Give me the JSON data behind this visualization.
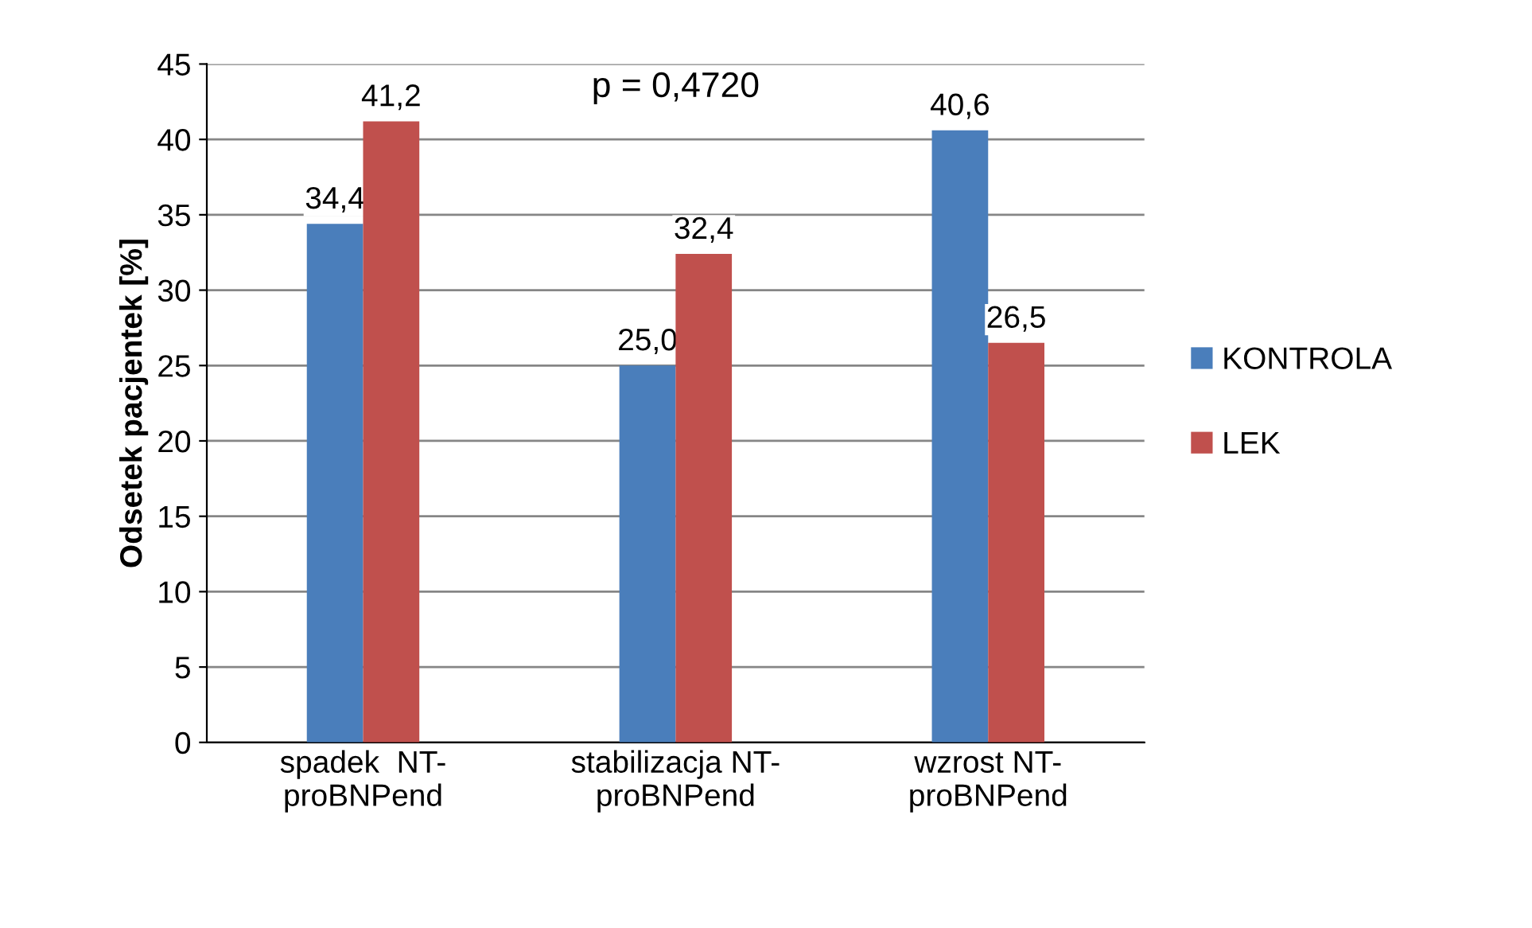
{
  "chart_data": {
    "type": "bar",
    "ylabel": "Odsetek pacjentek [%]",
    "categories": [
      "spadek  NT-\nproBNPend",
      "stabilizacja NT-\nproBNPend",
      "wzrost NT-\nproBNPend"
    ],
    "series": [
      {
        "name": "KONTROLA",
        "color": "#4a7ebb",
        "values": [
          34.4,
          25.0,
          40.6
        ],
        "value_labels": [
          "34,4",
          "25,0",
          "40,6"
        ]
      },
      {
        "name": "LEK",
        "color": "#c0504d",
        "values": [
          41.2,
          32.4,
          26.5
        ],
        "value_labels": [
          "41,2",
          "32,4",
          "26,5"
        ]
      }
    ],
    "ylim": [
      0,
      45
    ],
    "yticks": [
      0,
      5,
      10,
      15,
      20,
      25,
      30,
      35,
      40,
      45
    ],
    "grid": "y",
    "legend": "right",
    "annotations": [
      "p = 0,4720"
    ]
  }
}
